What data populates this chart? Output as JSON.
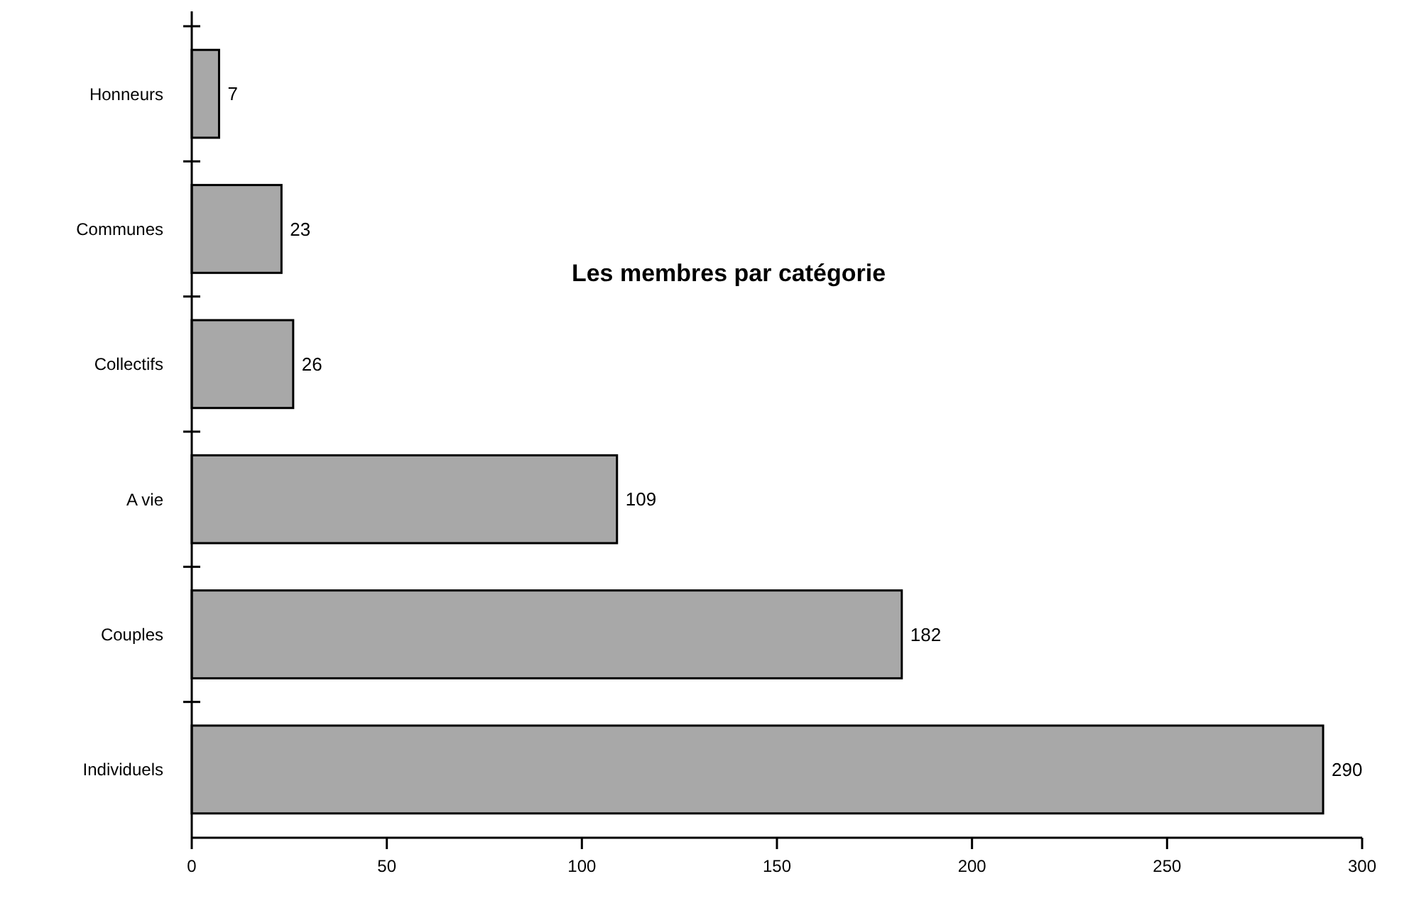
{
  "chart_data": {
    "type": "bar",
    "orientation": "horizontal",
    "title": "Les membres par catégorie",
    "categories": [
      "Honneurs",
      "Communes",
      "Collectifs",
      "A vie",
      "Couples",
      "Individuels"
    ],
    "values": [
      7,
      23,
      26,
      109,
      182,
      290
    ],
    "color": "#a8a8a8",
    "xlim": [
      0,
      300
    ],
    "xticks": [
      0,
      50,
      100,
      150,
      200,
      250,
      300
    ],
    "data_labels": true
  }
}
